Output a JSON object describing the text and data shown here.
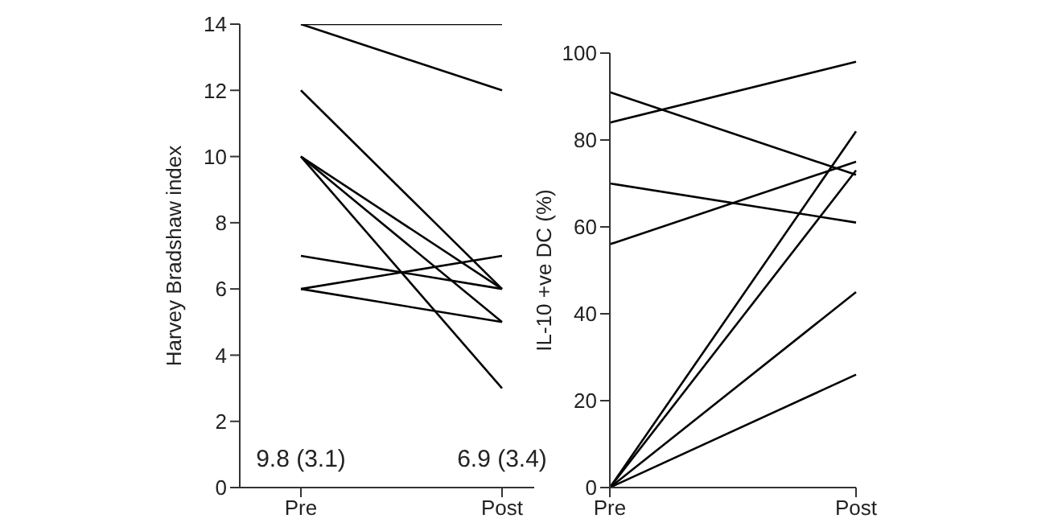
{
  "chart_data": [
    {
      "type": "line",
      "ylabel": "Harvey Bradshaw index",
      "categories": [
        "Pre",
        "Post"
      ],
      "ylim": [
        0,
        14
      ],
      "yticks": [
        0,
        2,
        4,
        6,
        8,
        10,
        12,
        14
      ],
      "marker": "none",
      "line_style": "solid",
      "annotations": [
        "9.8 (3.1)",
        "6.9 (3.4)"
      ],
      "series": [
        {
          "color": "#000000",
          "values": [
            14,
            14
          ]
        },
        {
          "color": "#000000",
          "values": [
            14,
            12
          ]
        },
        {
          "color": "#000000",
          "values": [
            12,
            6
          ]
        },
        {
          "color": "#000000",
          "values": [
            10,
            6
          ]
        },
        {
          "color": "#000000",
          "values": [
            10,
            5
          ]
        },
        {
          "color": "#000000",
          "values": [
            10,
            3
          ]
        },
        {
          "color": "#000000",
          "values": [
            7,
            6
          ]
        },
        {
          "color": "#000000",
          "values": [
            6,
            7
          ]
        },
        {
          "color": "#000000",
          "values": [
            6,
            5
          ]
        }
      ]
    },
    {
      "type": "line",
      "ylabel": "IL-10 +ve DC (%)",
      "categories": [
        "Pre",
        "Post"
      ],
      "ylim": [
        0,
        100
      ],
      "yticks": [
        0,
        20,
        40,
        60,
        80,
        100
      ],
      "marker": "none",
      "line_style": "solid",
      "series": [
        {
          "color": "#000000",
          "values": [
            84,
            98
          ]
        },
        {
          "color": "#000000",
          "values": [
            91,
            72
          ]
        },
        {
          "color": "#000000",
          "values": [
            70,
            61
          ]
        },
        {
          "color": "#000000",
          "values": [
            56,
            75
          ]
        },
        {
          "color": "#000000",
          "values": [
            0,
            82
          ]
        },
        {
          "color": "#000000",
          "values": [
            0,
            73
          ]
        },
        {
          "color": "#000000",
          "values": [
            0,
            45
          ]
        },
        {
          "color": "#000000",
          "values": [
            0,
            26
          ]
        }
      ]
    }
  ]
}
